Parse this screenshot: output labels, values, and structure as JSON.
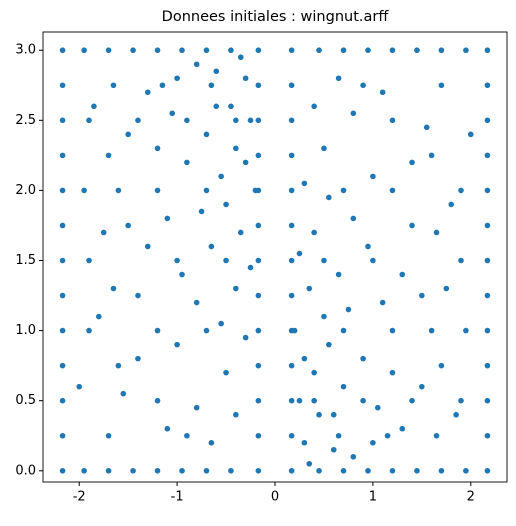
{
  "chart_data": {
    "type": "scatter",
    "title": "Donnees initiales : wingnut.arff",
    "color": "#1f77b4",
    "xlim": [
      -2.37,
      2.37
    ],
    "ylim": [
      -0.08,
      3.13
    ],
    "xticks": [
      -2,
      -1,
      0,
      1,
      2
    ],
    "yticks": [
      {
        "value": 0,
        "label": "0.0"
      },
      0.5,
      {
        "value": 1,
        "label": "1.0"
      },
      1.5,
      {
        "value": 2,
        "label": "2.0"
      },
      2.5,
      {
        "value": 3,
        "label": "3.0"
      }
    ],
    "x": [
      -2.17,
      -1.95,
      -1.7,
      -1.45,
      -1.2,
      -0.95,
      -0.7,
      -0.45,
      -0.17,
      -2.17,
      -1.65,
      -1.15,
      -0.65,
      -0.17,
      -2.17,
      -1.9,
      -1.4,
      -0.9,
      -0.4,
      -0.17,
      -2.17,
      -1.7,
      -0.17,
      -2.17,
      -1.2,
      -0.7,
      -0.17,
      -2.17,
      -1.5,
      -0.17,
      -2.17,
      -1.9,
      -1.0,
      -0.17,
      -2.17,
      -1.4,
      -0.17,
      -2.17,
      -1.9,
      -1.2,
      -0.7,
      -0.17,
      -2.17,
      -1.6,
      -0.17,
      -2.17,
      -1.2,
      -0.17,
      -2.17,
      -1.7,
      -0.9,
      -0.17,
      -2.17,
      -1.95,
      -1.7,
      -1.45,
      -1.2,
      -0.95,
      -0.7,
      -0.45,
      -0.17,
      -0.6,
      -0.4,
      -0.5,
      -0.3,
      -0.8,
      -1.0,
      -0.55,
      -0.35,
      -0.7,
      -0.25,
      -0.45,
      -0.9,
      -1.3,
      -1.5,
      -1.1,
      -0.65,
      -0.4,
      -0.8,
      -1.3,
      -1.6,
      -1.85,
      -1.0,
      -1.4,
      -1.8,
      -2.0,
      -0.5,
      -0.3,
      -0.8,
      -1.1,
      -0.4,
      -0.2,
      -0.6,
      -0.3,
      -0.5,
      -0.75,
      -1.2,
      -1.75,
      -1.95,
      -1.65,
      -0.95,
      -0.55,
      -0.25,
      -1.55,
      -0.65,
      -0.35,
      -1.05,
      2.17,
      1.95,
      1.7,
      1.45,
      1.2,
      0.95,
      0.7,
      0.45,
      0.17,
      2.17,
      1.65,
      1.15,
      0.65,
      0.17,
      2.17,
      1.9,
      1.4,
      0.9,
      0.4,
      0.17,
      2.17,
      1.7,
      0.17,
      2.17,
      1.2,
      0.7,
      0.17,
      2.17,
      1.5,
      0.17,
      2.17,
      1.9,
      1.0,
      0.17,
      2.17,
      1.4,
      0.17,
      2.17,
      1.9,
      1.2,
      0.7,
      0.17,
      2.17,
      1.6,
      0.17,
      2.17,
      1.2,
      0.17,
      2.17,
      1.7,
      0.9,
      0.17,
      2.17,
      1.95,
      1.7,
      1.45,
      1.2,
      0.95,
      0.7,
      0.45,
      0.17,
      0.6,
      0.4,
      0.5,
      0.3,
      0.8,
      1.0,
      0.55,
      0.35,
      0.7,
      0.25,
      0.45,
      0.9,
      1.3,
      1.5,
      1.1,
      0.65,
      0.4,
      0.8,
      1.3,
      1.6,
      1.85,
      1.0,
      1.4,
      1.8,
      2.0,
      0.5,
      0.3,
      0.8,
      1.1,
      0.4,
      0.2,
      0.6,
      0.3,
      0.5,
      0.75,
      1.2,
      1.75,
      1.95,
      1.65,
      0.95,
      0.55,
      0.25,
      1.55,
      0.65,
      0.35,
      1.05
    ],
    "values": [
      3,
      3,
      3,
      3,
      3,
      3,
      3,
      3,
      3,
      2.75,
      2.75,
      2.75,
      2.75,
      2.75,
      2.5,
      2.5,
      2.5,
      2.5,
      2.5,
      2.5,
      2.25,
      2.25,
      2.25,
      2,
      2,
      2,
      2,
      1.75,
      1.75,
      1.75,
      1.5,
      1.5,
      1.5,
      1.5,
      1.25,
      1.25,
      1.25,
      1,
      1,
      1,
      1,
      1,
      0.75,
      0.75,
      0.75,
      0.5,
      0.5,
      0.5,
      0.25,
      0.25,
      0.25,
      0.25,
      0,
      0,
      0,
      0,
      0,
      0,
      0,
      0,
      0,
      2.6,
      2.3,
      1.9,
      2.8,
      2.9,
      2.8,
      2.1,
      1.7,
      2.4,
      2.5,
      2.6,
      2.2,
      2.7,
      2.4,
      1.8,
      1.6,
      1.3,
      1.2,
      1.6,
      2.0,
      2.6,
      0.9,
      0.8,
      1.1,
      0.6,
      0.7,
      0.95,
      0.45,
      0.3,
      0.4,
      2.0,
      2.85,
      2.2,
      1.5,
      1.85,
      2.3,
      1.7,
      2.0,
      1.3,
      1.4,
      1.05,
      1.45,
      0.55,
      0.2,
      2.95,
      2.55,
      0,
      0,
      0,
      0,
      0,
      0,
      0,
      0,
      0,
      0.25,
      0.25,
      0.25,
      0.25,
      0.25,
      0.5,
      0.5,
      0.5,
      0.5,
      0.5,
      0.5,
      0.75,
      0.75,
      0.75,
      1,
      1,
      1,
      1,
      1.25,
      1.25,
      1.25,
      1.5,
      1.5,
      1.5,
      1.5,
      1.75,
      1.75,
      1.75,
      2,
      2,
      2,
      2,
      2,
      2.25,
      2.25,
      2.25,
      2.5,
      2.5,
      2.5,
      2.75,
      2.75,
      2.75,
      2.75,
      3,
      3,
      3,
      3,
      3,
      3,
      3,
      3,
      3,
      0.4,
      0.7,
      1.1,
      0.2,
      0.1,
      0.2,
      0.9,
      1.3,
      0.6,
      0.5,
      0.4,
      0.8,
      0.3,
      0.6,
      1.2,
      1.4,
      1.7,
      1.8,
      1.4,
      1.0,
      0.4,
      2.1,
      2.2,
      1.9,
      2.4,
      2.3,
      2.05,
      2.55,
      2.7,
      2.6,
      1.0,
      0.15,
      0.8,
      1.5,
      1.15,
      0.7,
      1.3,
      1.0,
      1.7,
      1.6,
      1.95,
      1.55,
      2.45,
      2.8,
      0.05,
      0.45
    ]
  }
}
